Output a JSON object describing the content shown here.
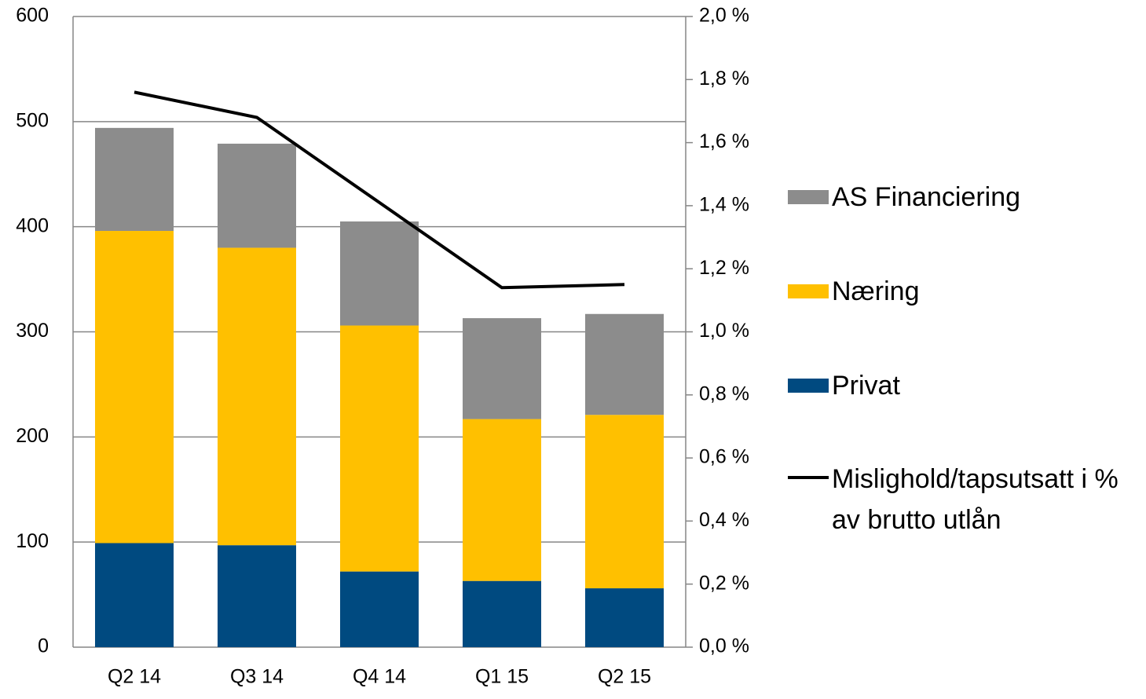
{
  "chart_data": {
    "type": "bar",
    "categories": [
      "Q2 14",
      "Q3 14",
      "Q4 14",
      "Q1 15",
      "Q2 15"
    ],
    "series": [
      {
        "name": "Privat",
        "color": "#004a80",
        "values": [
          99,
          97,
          72,
          63,
          56
        ]
      },
      {
        "name": "Næring",
        "color": "#ffc000",
        "values": [
          297,
          283,
          234,
          154,
          165
        ]
      },
      {
        "name": "AS Financiering",
        "color": "#8c8c8c",
        "values": [
          98,
          99,
          99,
          96,
          96
        ]
      },
      {
        "name": "Mislighold/tapsutsatt i % av brutto utlån",
        "type": "line",
        "axis": "y2",
        "color": "#000000",
        "values": [
          1.76,
          1.68,
          1.41,
          1.14,
          1.15
        ]
      }
    ],
    "stacked": true,
    "ylim": [
      0,
      600
    ],
    "yticks": [
      0,
      100,
      200,
      300,
      400,
      500,
      600
    ],
    "y2lim": [
      0,
      2.0
    ],
    "y2ticks": [
      {
        "value": 0,
        "label": "0,0 %"
      },
      {
        "value": 0.2,
        "label": "0,2 %"
      },
      {
        "value": 0.4,
        "label": "0,4 %"
      },
      {
        "value": 0.6,
        "label": "0,6 %"
      },
      {
        "value": 0.8,
        "label": "0,8 %"
      },
      {
        "value": 1.0,
        "label": "1,0 %"
      },
      {
        "value": 1.2,
        "label": "1,2 %"
      },
      {
        "value": 1.4,
        "label": "1,4 %"
      },
      {
        "value": 1.6,
        "label": "1,6 %"
      },
      {
        "value": 1.8,
        "label": "1,8 %"
      },
      {
        "value": 2.0,
        "label": "2,0 %"
      }
    ],
    "grid": true,
    "legend": "right"
  }
}
